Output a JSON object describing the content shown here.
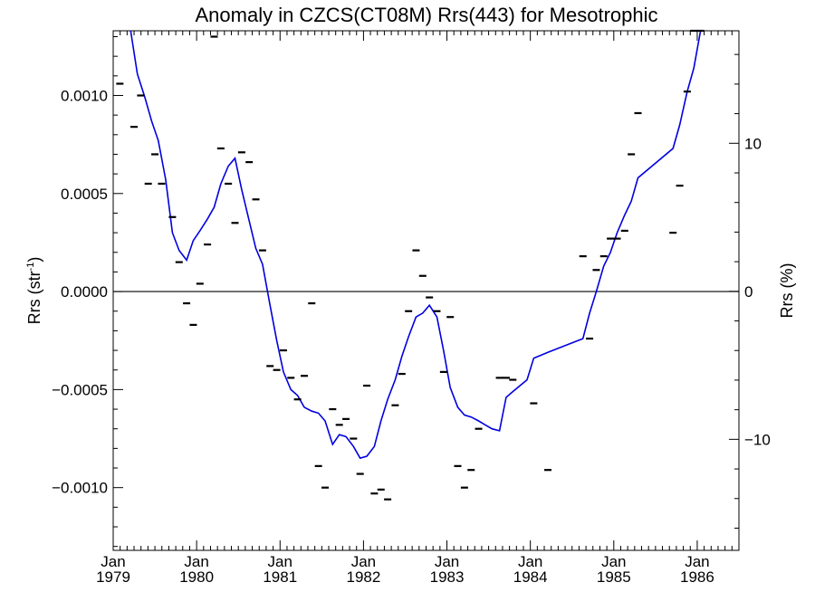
{
  "chart_data": {
    "type": "line",
    "title": "Anomaly in CZCS(CT08M) Rrs(443) for Mesotrophic",
    "ylabel_base": "Rrs (str",
    "ylabel_sup": "-1",
    "ylabel_close": ")",
    "y2label": "Rrs (%)",
    "xlim": [
      1979.0,
      1986.5
    ],
    "ylim": [
      -0.00132,
      0.00133
    ],
    "y2lim": [
      -17.5,
      17.6
    ],
    "colors": {
      "line": "#0000e0",
      "points": "#000000",
      "zero_line": "#000000"
    },
    "x_ticks": [
      {
        "x": 1979,
        "month": "Jan",
        "year": "1979"
      },
      {
        "x": 1980,
        "month": "Jan",
        "year": "1980"
      },
      {
        "x": 1981,
        "month": "Jan",
        "year": "1981"
      },
      {
        "x": 1982,
        "month": "Jan",
        "year": "1982"
      },
      {
        "x": 1983,
        "month": "Jan",
        "year": "1983"
      },
      {
        "x": 1984,
        "month": "Jan",
        "year": "1984"
      },
      {
        "x": 1985,
        "month": "Jan",
        "year": "1985"
      },
      {
        "x": 1986,
        "month": "Jan",
        "year": "1986"
      }
    ],
    "y_ticks": [
      {
        "v": 0.001,
        "label": "0.0010"
      },
      {
        "v": 0.0005,
        "label": "0.0005"
      },
      {
        "v": 0.0,
        "label": "0.0000"
      },
      {
        "v": -0.0005,
        "label": "−0.0005"
      },
      {
        "v": -0.001,
        "label": "−0.0010"
      }
    ],
    "y2_ticks": [
      {
        "v": 10,
        "label": "10"
      },
      {
        "v": 0,
        "label": "0"
      },
      {
        "v": -10,
        "label": "−10"
      }
    ],
    "zero_line": 0,
    "series": [
      {
        "type": "line",
        "x": [
          1979.21,
          1979.29,
          1979.38,
          1979.46,
          1979.54,
          1979.63,
          1979.71,
          1979.79,
          1979.88,
          1979.96,
          1980.04,
          1980.13,
          1980.21,
          1980.29,
          1980.38,
          1980.46,
          1980.54,
          1980.63,
          1980.71,
          1980.79,
          1980.88,
          1980.96,
          1981.04,
          1981.13,
          1981.21,
          1981.29,
          1981.38,
          1981.46,
          1981.54,
          1981.63,
          1981.71,
          1981.79,
          1981.88,
          1981.96,
          1982.04,
          1982.13,
          1982.21,
          1982.29,
          1982.38,
          1982.46,
          1982.54,
          1982.63,
          1982.71,
          1982.79,
          1982.88,
          1982.96,
          1983.04,
          1983.13,
          1983.21,
          1983.29,
          1983.38,
          1983.46,
          1983.54,
          1983.63,
          1983.71,
          1983.79,
          1983.96,
          1984.04,
          1984.21,
          1984.63,
          1984.71,
          1984.79,
          1984.88,
          1984.96,
          1985.04,
          1985.13,
          1985.21,
          1985.29,
          1985.71,
          1985.79,
          1985.88,
          1985.96,
          1986.04
        ],
        "y": [
          0.00134,
          0.00111,
          0.00099,
          0.00087,
          0.00077,
          0.00057,
          0.0003,
          0.00021,
          0.00016,
          0.00026,
          0.00031,
          0.00037,
          0.00043,
          0.00055,
          0.00064,
          0.00068,
          0.00052,
          0.00036,
          0.00022,
          0.00014,
          -7e-05,
          -0.00025,
          -0.00041,
          -0.0005,
          -0.00053,
          -0.00059,
          -0.00061,
          -0.00062,
          -0.00066,
          -0.00078,
          -0.00073,
          -0.00074,
          -0.00079,
          -0.00085,
          -0.00084,
          -0.00079,
          -0.00066,
          -0.00055,
          -0.00045,
          -0.00033,
          -0.00023,
          -0.00013,
          -0.00011,
          -7e-05,
          -0.00013,
          -0.0003,
          -0.00049,
          -0.00059,
          -0.00063,
          -0.00064,
          -0.00066,
          -0.00068,
          -0.0007,
          -0.00071,
          -0.00054,
          -0.00051,
          -0.00045,
          -0.00034,
          -0.00031,
          -0.00024,
          -0.00011,
          0.0,
          0.00013,
          0.0002,
          0.0003,
          0.00039,
          0.00046,
          0.00058,
          0.00073,
          0.00085,
          0.00102,
          0.00114,
          0.00134
        ]
      },
      {
        "type": "scatter",
        "x": [
          1979.08,
          1979.25,
          1979.33,
          1979.42,
          1979.5,
          1979.58,
          1979.71,
          1979.79,
          1979.88,
          1979.96,
          1980.04,
          1980.13,
          1980.21,
          1980.29,
          1980.38,
          1980.46,
          1980.54,
          1980.63,
          1980.71,
          1980.79,
          1980.88,
          1980.96,
          1981.04,
          1981.13,
          1981.21,
          1981.29,
          1981.38,
          1981.46,
          1981.54,
          1981.63,
          1981.71,
          1981.79,
          1981.88,
          1981.96,
          1982.04,
          1982.13,
          1982.21,
          1982.29,
          1982.38,
          1982.46,
          1982.54,
          1982.63,
          1982.71,
          1982.79,
          1982.88,
          1982.96,
          1983.04,
          1983.13,
          1983.21,
          1983.29,
          1983.38,
          1983.63,
          1983.71,
          1983.79,
          1984.04,
          1984.21,
          1984.63,
          1984.71,
          1984.79,
          1984.88,
          1984.96,
          1985.04,
          1985.13,
          1985.21,
          1985.29,
          1985.71,
          1985.79,
          1985.88,
          1985.96,
          1986.04
        ],
        "y": [
          0.00106,
          0.00084,
          0.001,
          0.00055,
          0.0007,
          0.00055,
          0.00038,
          0.00015,
          -6e-05,
          -0.00017,
          4e-05,
          0.00024,
          0.0013,
          0.00073,
          0.00055,
          0.00035,
          0.00071,
          0.00066,
          0.00047,
          0.00021,
          -0.00038,
          -0.0004,
          -0.0003,
          -0.00044,
          -0.00055,
          -0.00043,
          -6e-05,
          -0.00089,
          -0.001,
          -0.0006,
          -0.00068,
          -0.00065,
          -0.00075,
          -0.00093,
          -0.00048,
          -0.00103,
          -0.00101,
          -0.00106,
          -0.00058,
          -0.00042,
          -0.0001,
          0.00021,
          8e-05,
          -3e-05,
          -0.0001,
          -0.00041,
          -0.00013,
          -0.00089,
          -0.001,
          -0.00091,
          -0.0007,
          -0.00044,
          -0.00044,
          -0.00045,
          -0.00057,
          -0.00091,
          0.00018,
          -0.00024,
          0.00011,
          0.00018,
          0.00027,
          0.00027,
          0.00031,
          0.0007,
          0.00091,
          0.0003,
          0.00054,
          0.00102,
          0.00134,
          0.00134
        ]
      }
    ]
  }
}
